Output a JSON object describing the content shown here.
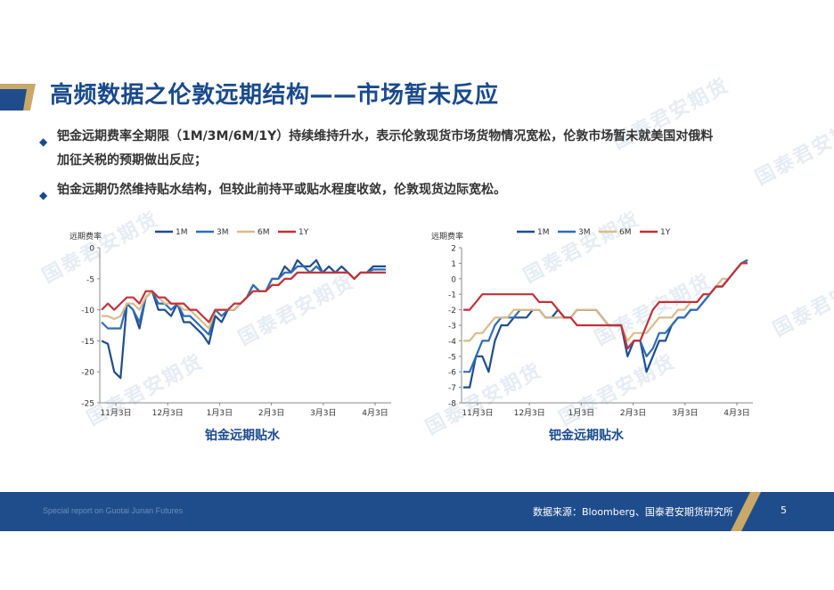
{
  "slide": {
    "title": "高频数据之伦敦远期结构——市场暂未反应",
    "bullets": [
      "钯金远期费率全期限（1M/3M/6M/1Y）持续维持升水，表示伦敦现货市场货物情况宽松，伦敦市场暂未就美国对俄料",
      "加征关税的预期做出反应；",
      "铂金远期仍然维持贴水结构，但较此前持平或贴水程度收敛，伦敦现货边际宽松。"
    ],
    "footer_left": "Special report on Guotai Junan Futures",
    "footer_source": "数据来源：Bloomberg、国泰君安期货研究所",
    "page_number": "5",
    "watermark": "国泰君安期货",
    "colors": {
      "brand": "#1f4d8c",
      "accent": "#c9a86a"
    }
  },
  "chart_data": [
    {
      "type": "line",
      "caption": "铂金远期贴水",
      "ylabel": "远期费率",
      "ylim": [
        -25,
        0
      ],
      "yticks": [
        0,
        -5,
        -10,
        -15,
        -20,
        -25
      ],
      "xticks": [
        "11月3日",
        "12月3日",
        "1月3日",
        "2月3日",
        "3月3日",
        "4月3日"
      ],
      "legend_position": "top",
      "series": [
        {
          "name": "1M",
          "color": "#1f4d8c",
          "values": [
            -15,
            -15.5,
            -20,
            -21,
            -9,
            -10,
            -13,
            -8,
            -7,
            -10,
            -10,
            -11,
            -9,
            -12,
            -12,
            -13,
            -14,
            -15.5,
            -11,
            -12,
            -10,
            -10,
            -9,
            -8,
            -6,
            -7,
            -7,
            -5,
            -5,
            -3,
            -4,
            -2,
            -3,
            -3,
            -2,
            -4,
            -3,
            -4,
            -3,
            -4,
            -5,
            -4,
            -4,
            -3,
            -3,
            -3
          ]
        },
        {
          "name": "3M",
          "color": "#2e6db4",
          "values": [
            -12,
            -13,
            -13,
            -13,
            -9,
            -10,
            -12,
            -8,
            -7,
            -9,
            -9,
            -10,
            -9,
            -11,
            -11,
            -12,
            -13,
            -14,
            -10,
            -11,
            -10,
            -10,
            -9,
            -8,
            -6,
            -7,
            -7,
            -5,
            -5,
            -4,
            -4,
            -3,
            -3,
            -4,
            -3,
            -4,
            -4,
            -4,
            -4,
            -4,
            -5,
            -4,
            -4,
            -3.5,
            -3.5,
            -3.5
          ]
        },
        {
          "name": "6M",
          "color": "#d9bb8c",
          "values": [
            -11,
            -11,
            -11.5,
            -11,
            -9,
            -9,
            -10,
            -8,
            -7,
            -8,
            -9,
            -9,
            -9,
            -10,
            -10,
            -11,
            -12,
            -13,
            -10,
            -10,
            -10,
            -10,
            -9,
            -8,
            -7,
            -7,
            -7,
            -6,
            -6,
            -5,
            -5,
            -4,
            -4,
            -4,
            -4,
            -4,
            -4,
            -4,
            -4,
            -4,
            -5,
            -4,
            -4,
            -4,
            -4,
            -4
          ]
        },
        {
          "name": "1Y",
          "color": "#c0313a",
          "values": [
            -10,
            -9,
            -10,
            -9,
            -8,
            -8,
            -9,
            -7,
            -7,
            -8,
            -8,
            -9,
            -9,
            -9,
            -10,
            -10,
            -11,
            -12,
            -10,
            -10,
            -10,
            -9,
            -9,
            -8,
            -7,
            -7,
            -7,
            -6,
            -6,
            -5,
            -5,
            -4,
            -4,
            -4,
            -4,
            -4,
            -4,
            -4,
            -4,
            -4,
            -5,
            -4,
            -4,
            -4,
            -4,
            -4
          ]
        }
      ]
    },
    {
      "type": "line",
      "caption": "钯金远期贴水",
      "ylabel": "远期费率",
      "ylim": [
        -8,
        2
      ],
      "yticks": [
        2,
        1,
        0,
        -1,
        -2,
        -3,
        -4,
        -5,
        -6,
        -7,
        -8
      ],
      "xticks": [
        "11月3日",
        "12月3日",
        "1月3日",
        "2月3日",
        "3月3日",
        "4月3日"
      ],
      "legend_position": "top",
      "series": [
        {
          "name": "1M",
          "color": "#1f4d8c",
          "values": [
            -7,
            -7,
            -5,
            -5,
            -6,
            -4,
            -3,
            -3,
            -2.5,
            -2.5,
            -2.5,
            -2,
            -2,
            -2.5,
            -2.5,
            -2,
            -2.5,
            -2.5,
            -2,
            -2,
            -2,
            -2,
            -2.5,
            -3,
            -3,
            -3,
            -5,
            -4,
            -4,
            -6,
            -5,
            -4,
            -4,
            -3,
            -2.5,
            -2.5,
            -2,
            -2,
            -1.5,
            -1,
            -0.5,
            -0.5,
            0,
            0.5,
            1,
            1.2
          ]
        },
        {
          "name": "3M",
          "color": "#2e6db4",
          "values": [
            -6,
            -6,
            -5,
            -4,
            -4,
            -3,
            -2.5,
            -2.5,
            -2.5,
            -2,
            -2,
            -2,
            -2,
            -2.5,
            -2.5,
            -2.5,
            -2.5,
            -2.5,
            -2,
            -2,
            -2,
            -2,
            -2.5,
            -3,
            -3,
            -3,
            -4.5,
            -4,
            -4,
            -5,
            -4.5,
            -3.5,
            -3.5,
            -3,
            -2.5,
            -2.5,
            -2,
            -2,
            -1.5,
            -1,
            -0.5,
            -0.5,
            0,
            0.5,
            1,
            1.2
          ]
        },
        {
          "name": "6M",
          "color": "#d9bb8c",
          "values": [
            -4,
            -4,
            -3.5,
            -3.5,
            -3,
            -2.5,
            -2.5,
            -2.5,
            -2,
            -2,
            -2,
            -2,
            -2,
            -2.5,
            -2.5,
            -2.5,
            -2.5,
            -2.5,
            -2,
            -2,
            -2,
            -2,
            -2.5,
            -3,
            -3,
            -3,
            -4,
            -3.5,
            -3.5,
            -3.5,
            -3,
            -2.5,
            -2.5,
            -2.5,
            -2,
            -2,
            -1.5,
            -1.5,
            -1,
            -1,
            -0.5,
            0,
            0,
            0.5,
            1,
            1
          ]
        },
        {
          "name": "1Y",
          "color": "#c0313a",
          "values": [
            -2,
            -2,
            -1.5,
            -1,
            -1,
            -1,
            -1,
            -1,
            -1,
            -1,
            -1,
            -1,
            -1.5,
            -1.5,
            -1.5,
            -2,
            -2.5,
            -2.5,
            -3,
            -3,
            -3,
            -3,
            -3,
            -3,
            -3,
            -3,
            -4.5,
            -4,
            -4,
            -3,
            -2,
            -1.5,
            -1.5,
            -1.5,
            -1.5,
            -1.5,
            -1.5,
            -1.5,
            -1,
            -1,
            -0.5,
            -0.5,
            0,
            0.5,
            1,
            1
          ]
        }
      ]
    }
  ]
}
